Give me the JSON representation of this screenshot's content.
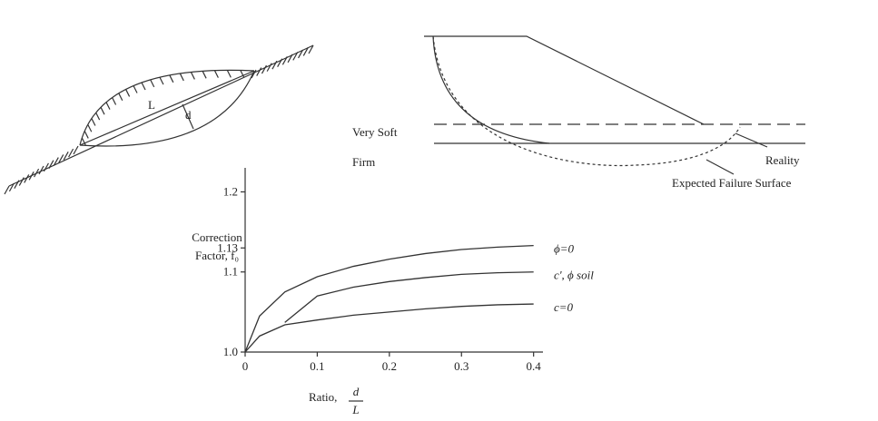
{
  "diagrams": {
    "slip_lens": {
      "labels": [
        "L",
        "d"
      ]
    },
    "slope_failure": {
      "layers": [
        "Very Soft",
        "Firm"
      ],
      "annotations": [
        "Reality",
        "Expected Failure Surface"
      ]
    }
  },
  "chart_data": {
    "type": "line",
    "y_label": [
      "Correction",
      "Factor, f₀"
    ],
    "x_label": "Ratio,",
    "x_label_fraction": {
      "numerator": "d",
      "denominator": "L"
    },
    "x": [
      0,
      0.02,
      0.055,
      0.1,
      0.15,
      0.2,
      0.25,
      0.3,
      0.35,
      0.4
    ],
    "series": [
      {
        "name": "ϕ=0",
        "color": "#333333",
        "values": [
          1.0,
          1.045,
          1.075,
          1.094,
          1.107,
          1.116,
          1.123,
          1.128,
          1.131,
          1.133
        ]
      },
      {
        "name": "c', ϕ soil",
        "color": "#333333",
        "values": [
          null,
          null,
          1.037,
          1.07,
          1.081,
          1.088,
          1.093,
          1.097,
          1.099,
          1.1
        ]
      },
      {
        "name": "c=0",
        "color": "#333333",
        "values": [
          1.0,
          1.02,
          1.034,
          1.04,
          1.046,
          1.05,
          1.054,
          1.057,
          1.059,
          1.06
        ]
      }
    ],
    "xlim": [
      0,
      0.413
    ],
    "ylim": [
      1.0,
      1.23
    ],
    "xticks": [
      0,
      0.1,
      0.2,
      0.3,
      0.4
    ],
    "yticks": [
      {
        "value": 1.0,
        "label": "1.0"
      },
      1.1,
      1.13,
      1.2
    ]
  }
}
